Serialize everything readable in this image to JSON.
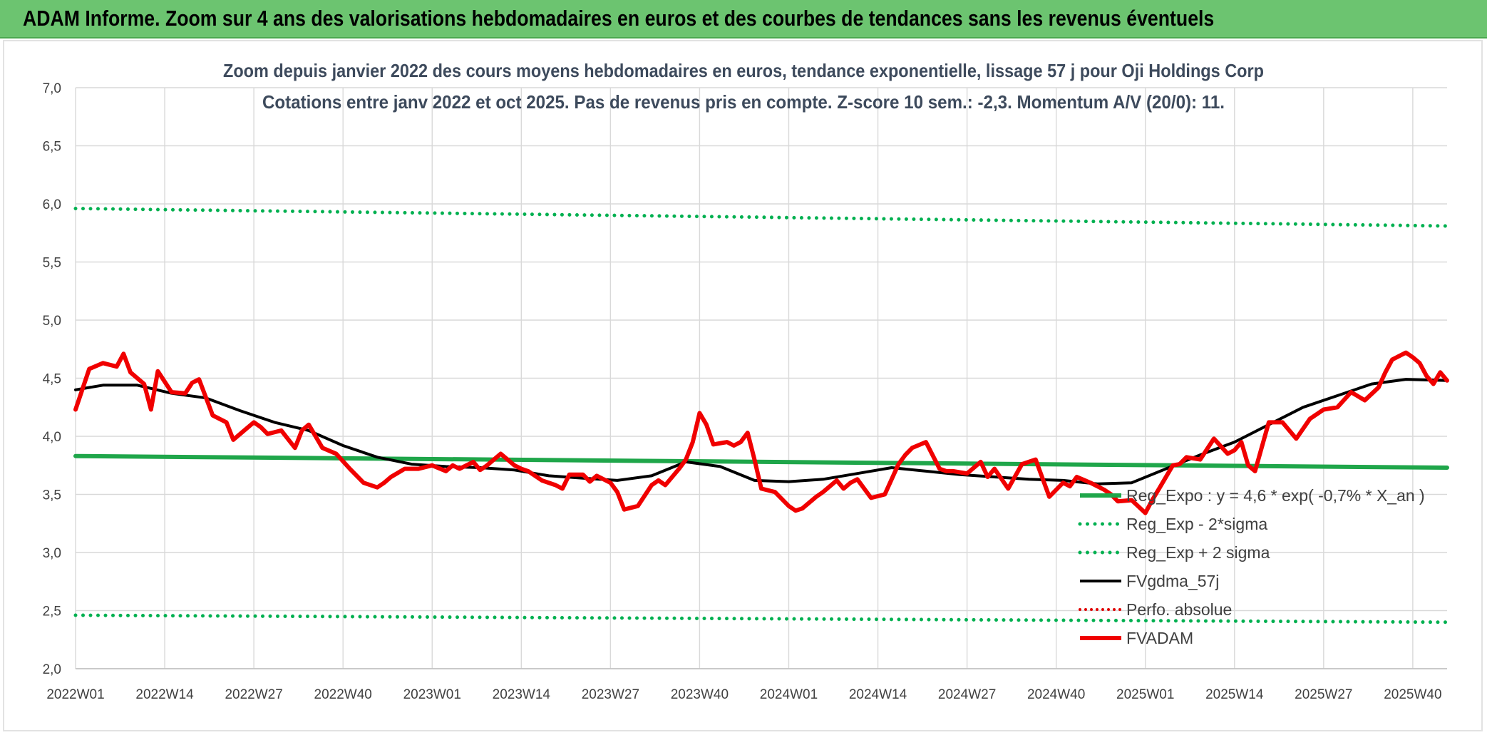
{
  "banner": {
    "title": "ADAM Informe. Zoom sur 4 ans des valorisations hebdomadaires en euros et des courbes de tendances sans les revenus éventuels"
  },
  "colors": {
    "banner_bg": "#6cc470",
    "reg_expo": "#1fa64a",
    "sigma_lines": "#00b050",
    "fvgdma": "#000000",
    "perfo": "#e00000",
    "fvadam": "#f00000",
    "grid": "#d9d9d9",
    "title_text": "#3d4a5c"
  },
  "chart_data": {
    "type": "line",
    "title_lines": [
      "Zoom depuis janvier 2022  des cours moyens hebdomadaires en euros, tendance exponentielle, lissage 57 j pour Oji Holdings Corp",
      "Cotations entre janv 2022 et oct 2025. Pas de revenus pris en compte. Z-score 10 sem.: -2,3. Momentum A/V (20/0): 11."
    ],
    "x_ticks": [
      "2022W01",
      "2022W14",
      "2022W27",
      "2022W40",
      "2023W01",
      "2023W14",
      "2023W27",
      "2023W40",
      "2024W01",
      "2024W14",
      "2024W27",
      "2024W40",
      "2025W01",
      "2025W14",
      "2025W27",
      "2025W40"
    ],
    "x_tick_weeks": [
      1,
      14,
      27,
      40,
      53,
      66,
      79,
      92,
      105,
      118,
      131,
      144,
      157,
      170,
      183,
      196
    ],
    "y_ticks": [
      "2,0",
      "2,5",
      "3,0",
      "3,5",
      "4,0",
      "4,5",
      "5,0",
      "5,5",
      "6,0",
      "6,5",
      "7,0"
    ],
    "ylim": [
      2.0,
      7.0
    ],
    "xlim": [
      1,
      201
    ],
    "grid": true,
    "legend_position": "bottom-right, inside plot",
    "series": [
      {
        "name": "Reg_Expo : y = 4,6 * exp( -0,7% *  X_an )",
        "style": "solid",
        "x": [
          1,
          201
        ],
        "values": [
          3.83,
          3.73
        ]
      },
      {
        "name": "Reg_Exp - 2*sigma",
        "style": "dotted",
        "x": [
          1,
          201
        ],
        "values": [
          2.46,
          2.4
        ]
      },
      {
        "name": "Reg_Exp + 2 sigma",
        "style": "dotted",
        "x": [
          1,
          201
        ],
        "values": [
          5.96,
          5.81
        ]
      },
      {
        "name": "FVgdma_57j",
        "style": "solid",
        "x": [
          1,
          5,
          10,
          15,
          20,
          25,
          30,
          35,
          40,
          45,
          50,
          55,
          60,
          65,
          70,
          75,
          80,
          85,
          90,
          95,
          100,
          105,
          110,
          115,
          120,
          125,
          130,
          135,
          140,
          145,
          150,
          155,
          160,
          165,
          170,
          175,
          180,
          185,
          190,
          195,
          201
        ],
        "values": [
          4.4,
          4.44,
          4.44,
          4.37,
          4.33,
          4.22,
          4.12,
          4.05,
          3.92,
          3.82,
          3.76,
          3.74,
          3.73,
          3.71,
          3.66,
          3.64,
          3.62,
          3.66,
          3.78,
          3.74,
          3.62,
          3.61,
          3.63,
          3.68,
          3.73,
          3.7,
          3.67,
          3.65,
          3.63,
          3.62,
          3.59,
          3.6,
          3.72,
          3.84,
          3.95,
          4.1,
          4.25,
          4.35,
          4.45,
          4.49,
          4.48
        ]
      },
      {
        "name": "Perfo. absolue",
        "style": "dotted",
        "x": [],
        "values": []
      },
      {
        "name": "FVADAM",
        "style": "solid-thick",
        "x": [
          1,
          3,
          5,
          7,
          8,
          9,
          11,
          12,
          13,
          15,
          17,
          18,
          19,
          21,
          23,
          24,
          25,
          27,
          28,
          29,
          31,
          33,
          34,
          35,
          37,
          39,
          41,
          43,
          45,
          46,
          47,
          49,
          51,
          53,
          55,
          56,
          57,
          59,
          60,
          61,
          63,
          65,
          66,
          67,
          69,
          71,
          72,
          73,
          75,
          76,
          77,
          79,
          80,
          81,
          83,
          85,
          86,
          87,
          89,
          90,
          91,
          92,
          93,
          94,
          96,
          97,
          98,
          99,
          100,
          101,
          103,
          105,
          106,
          107,
          109,
          110,
          111,
          112,
          113,
          114,
          115,
          117,
          119,
          121,
          122,
          123,
          125,
          127,
          128,
          129,
          131,
          133,
          134,
          135,
          137,
          139,
          141,
          143,
          145,
          146,
          147,
          149,
          151,
          152,
          153,
          155,
          157,
          158,
          159,
          161,
          162,
          163,
          165,
          167,
          169,
          170,
          171,
          172,
          173,
          175,
          177,
          179,
          181,
          183,
          185,
          187,
          189,
          191,
          192,
          193,
          195,
          196,
          197,
          198,
          199,
          200,
          201
        ],
        "values": [
          4.23,
          4.58,
          4.63,
          4.6,
          4.71,
          4.55,
          4.45,
          4.23,
          4.56,
          4.38,
          4.37,
          4.46,
          4.49,
          4.18,
          4.12,
          3.97,
          4.02,
          4.12,
          4.08,
          4.02,
          4.05,
          3.9,
          4.05,
          4.1,
          3.9,
          3.85,
          3.72,
          3.6,
          3.56,
          3.6,
          3.65,
          3.72,
          3.72,
          3.75,
          3.7,
          3.75,
          3.72,
          3.78,
          3.71,
          3.75,
          3.85,
          3.75,
          3.72,
          3.7,
          3.62,
          3.58,
          3.55,
          3.67,
          3.67,
          3.61,
          3.66,
          3.6,
          3.52,
          3.37,
          3.4,
          3.58,
          3.62,
          3.58,
          3.72,
          3.8,
          3.95,
          4.2,
          4.1,
          3.93,
          3.95,
          3.92,
          3.95,
          4.03,
          3.8,
          3.55,
          3.52,
          3.4,
          3.36,
          3.38,
          3.48,
          3.52,
          3.57,
          3.62,
          3.55,
          3.6,
          3.63,
          3.47,
          3.5,
          3.76,
          3.84,
          3.9,
          3.95,
          3.72,
          3.7,
          3.7,
          3.68,
          3.78,
          3.65,
          3.72,
          3.55,
          3.76,
          3.8,
          3.48,
          3.6,
          3.57,
          3.65,
          3.6,
          3.54,
          3.5,
          3.44,
          3.45,
          3.34,
          3.45,
          3.55,
          3.75,
          3.76,
          3.82,
          3.8,
          3.98,
          3.85,
          3.88,
          3.95,
          3.75,
          3.7,
          4.12,
          4.12,
          3.98,
          4.15,
          4.23,
          4.25,
          4.38,
          4.31,
          4.42,
          4.55,
          4.66,
          4.72,
          4.68,
          4.63,
          4.52,
          4.45,
          4.55,
          4.48
        ]
      }
    ]
  }
}
